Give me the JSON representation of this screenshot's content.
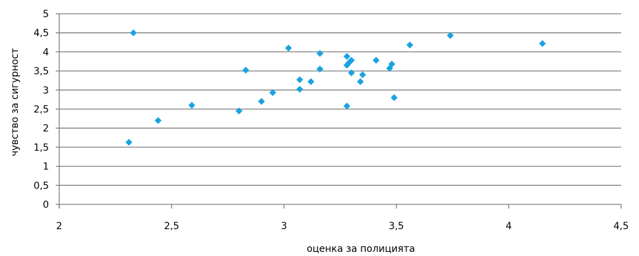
{
  "chart_data": {
    "type": "scatter",
    "xlabel": "оценка за полицията",
    "ylabel": "чувство за сигурност",
    "xlim": [
      2,
      4.5
    ],
    "ylim": [
      0,
      5
    ],
    "x_ticks": [
      2,
      2.5,
      3,
      3.5,
      4,
      4.5
    ],
    "y_ticks": [
      0,
      0.5,
      1,
      1.5,
      2,
      2.5,
      3,
      3.5,
      4,
      4.5,
      5
    ],
    "x_tick_labels": [
      "2",
      "2,5",
      "3",
      "3,5",
      "4",
      "4,5"
    ],
    "y_tick_labels": [
      "0",
      "0,5",
      "1",
      "1,5",
      "2",
      "2,5",
      "3",
      "3,5",
      "4",
      "4,5",
      "5"
    ],
    "grid": "horizontal",
    "marker": "diamond",
    "marker_color": "#1aa3e0",
    "grid_color": "#808080",
    "points": [
      {
        "x": 2.31,
        "y": 1.63
      },
      {
        "x": 2.33,
        "y": 4.5
      },
      {
        "x": 2.44,
        "y": 2.2
      },
      {
        "x": 2.59,
        "y": 2.6
      },
      {
        "x": 2.8,
        "y": 2.45
      },
      {
        "x": 2.83,
        "y": 3.52
      },
      {
        "x": 2.9,
        "y": 2.7
      },
      {
        "x": 2.95,
        "y": 2.93
      },
      {
        "x": 3.02,
        "y": 4.1
      },
      {
        "x": 3.07,
        "y": 3.02
      },
      {
        "x": 3.07,
        "y": 3.27
      },
      {
        "x": 3.12,
        "y": 3.22
      },
      {
        "x": 3.16,
        "y": 3.96
      },
      {
        "x": 3.16,
        "y": 3.55
      },
      {
        "x": 3.28,
        "y": 3.88
      },
      {
        "x": 3.28,
        "y": 3.65
      },
      {
        "x": 3.29,
        "y": 3.72
      },
      {
        "x": 3.3,
        "y": 3.78
      },
      {
        "x": 3.3,
        "y": 3.45
      },
      {
        "x": 3.28,
        "y": 2.58
      },
      {
        "x": 3.34,
        "y": 3.22
      },
      {
        "x": 3.35,
        "y": 3.4
      },
      {
        "x": 3.41,
        "y": 3.78
      },
      {
        "x": 3.47,
        "y": 3.57
      },
      {
        "x": 3.48,
        "y": 3.68
      },
      {
        "x": 3.49,
        "y": 2.8
      },
      {
        "x": 3.56,
        "y": 4.18
      },
      {
        "x": 3.74,
        "y": 4.43
      },
      {
        "x": 4.15,
        "y": 4.22
      }
    ]
  }
}
